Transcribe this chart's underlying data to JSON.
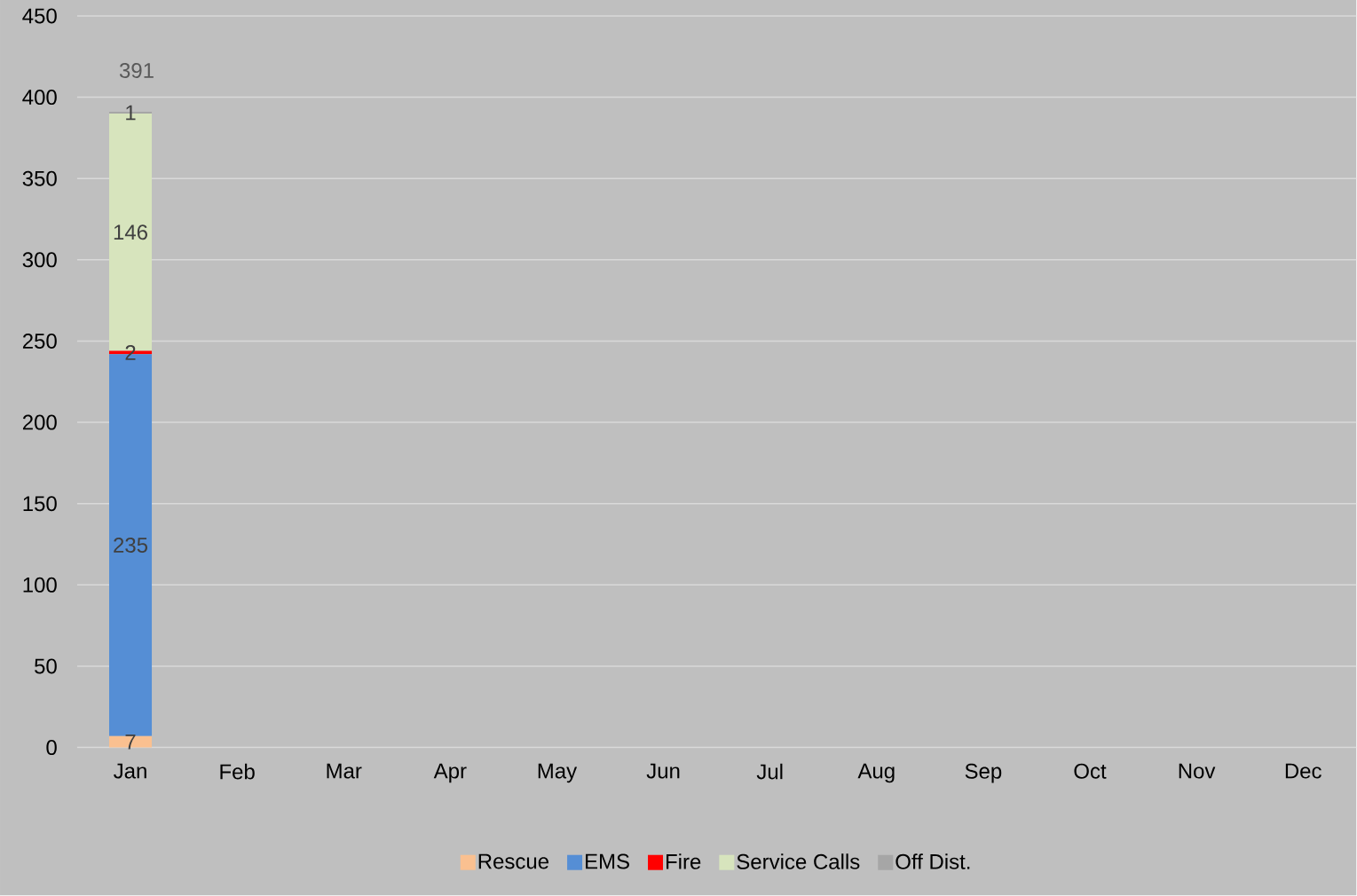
{
  "chart_data": {
    "type": "bar",
    "stacked": true,
    "categories": [
      "Jan",
      "Feb",
      "Mar",
      "Apr",
      "May",
      "Jun",
      "Jul",
      "Aug",
      "Sep",
      "Oct",
      "Nov",
      "Dec"
    ],
    "series": [
      {
        "name": "Rescue",
        "color": "#fac090",
        "values": [
          7,
          null,
          null,
          null,
          null,
          null,
          null,
          null,
          null,
          null,
          null,
          null
        ]
      },
      {
        "name": "EMS",
        "color": "#558ed5",
        "values": [
          235,
          null,
          null,
          null,
          null,
          null,
          null,
          null,
          null,
          null,
          null,
          null
        ]
      },
      {
        "name": "Fire",
        "color": "#ff0000",
        "values": [
          2,
          null,
          null,
          null,
          null,
          null,
          null,
          null,
          null,
          null,
          null,
          null
        ]
      },
      {
        "name": "Service Calls",
        "color": "#d7e4bd",
        "values": [
          146,
          null,
          null,
          null,
          null,
          null,
          null,
          null,
          null,
          null,
          null,
          null
        ]
      },
      {
        "name": "Off Dist.",
        "color": "#a6a6a6",
        "values": [
          1,
          null,
          null,
          null,
          null,
          null,
          null,
          null,
          null,
          null,
          null,
          null
        ]
      }
    ],
    "totals": [
      "391",
      null,
      null,
      null,
      null,
      null,
      null,
      null,
      null,
      null,
      null,
      null
    ],
    "data_labels": true,
    "ylim": [
      0,
      450
    ],
    "yticks": [
      0,
      50,
      100,
      150,
      200,
      250,
      300,
      350,
      400,
      450
    ],
    "grid": "y",
    "legend": "bottom"
  }
}
